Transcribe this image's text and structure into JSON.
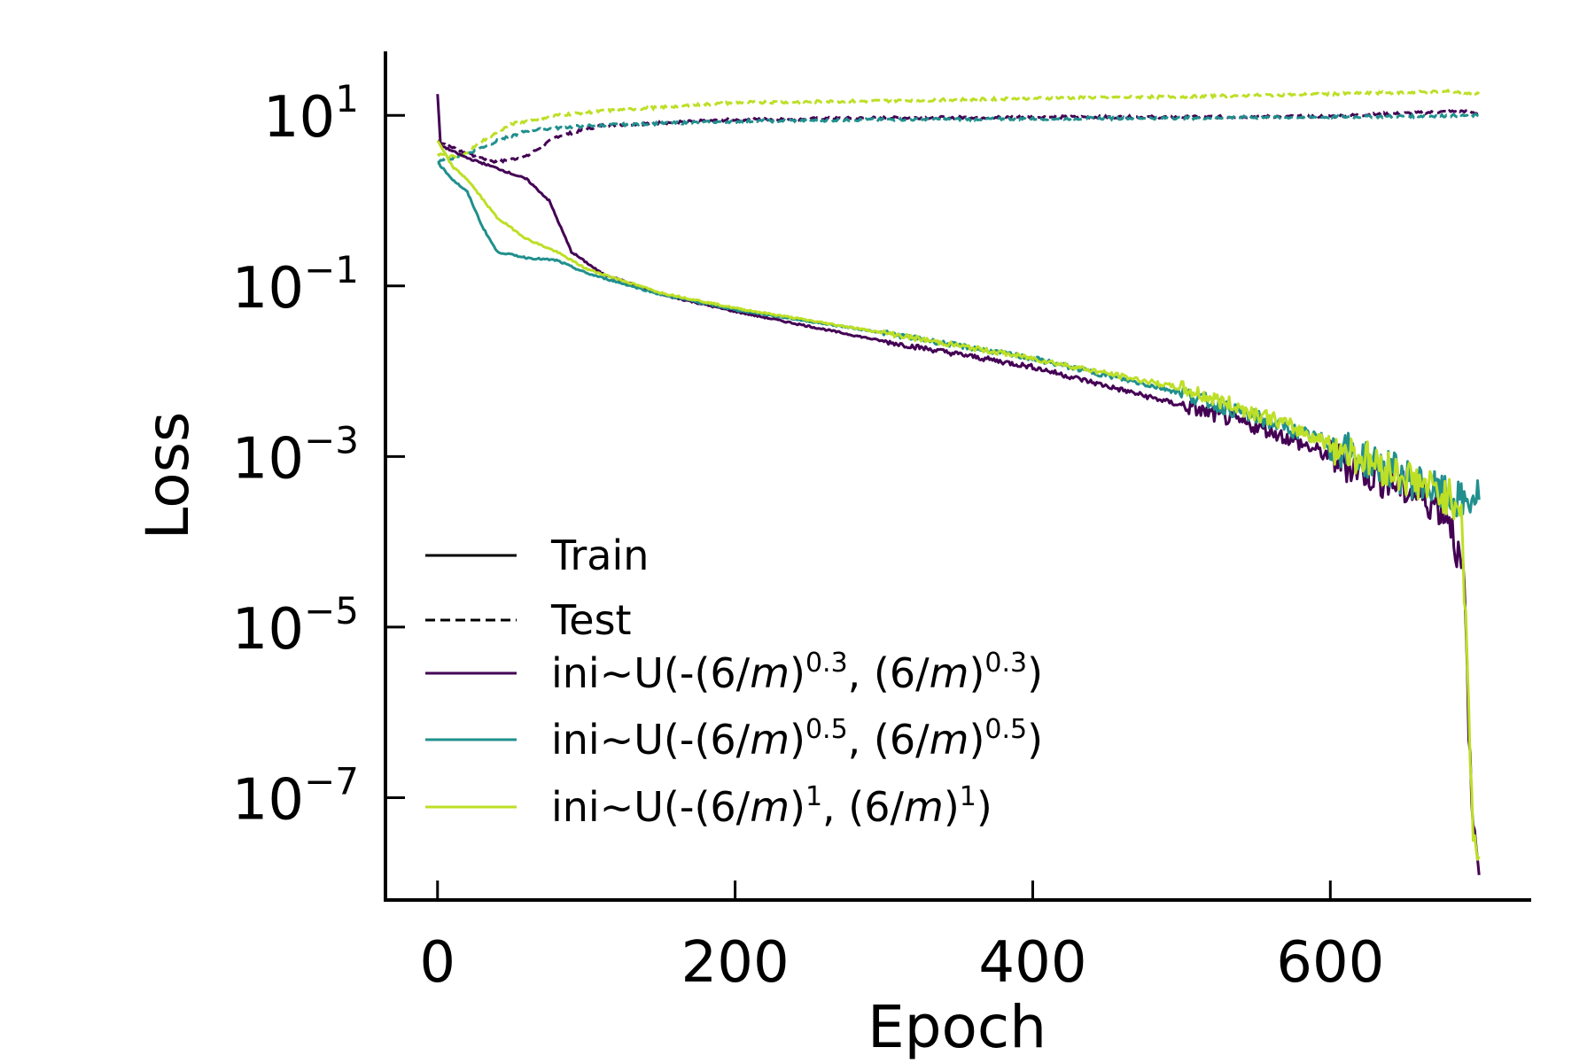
{
  "chart_data": {
    "type": "line",
    "title": "",
    "xlabel": "Epoch",
    "ylabel": "Loss",
    "xlim": [
      -35,
      735
    ],
    "ylim_log10": [
      -8.2,
      1.75
    ],
    "yscale": "log",
    "x_ticks": [
      {
        "value": 0,
        "label": "0"
      },
      {
        "value": 200,
        "label": "200"
      },
      {
        "value": 400,
        "label": "400"
      },
      {
        "value": 600,
        "label": "600"
      }
    ],
    "y_ticks": [
      {
        "log10": 1,
        "base": "10",
        "exp": "1"
      },
      {
        "log10": -1,
        "base": "10",
        "exp": "−1"
      },
      {
        "log10": -3,
        "base": "10",
        "exp": "−3"
      },
      {
        "log10": -5,
        "base": "10",
        "exp": "−5"
      },
      {
        "log10": -7,
        "base": "10",
        "exp": "−7"
      }
    ],
    "legend_position": "lower-left",
    "style_legend": [
      {
        "label": "Train",
        "dash": "solid"
      },
      {
        "label": "Test",
        "dash": "dashed"
      }
    ],
    "series": [
      {
        "name": "ini~U(-(6/m)^0.3, (6/m)^0.3)",
        "color": "#440154",
        "train_log10": [
          [
            0,
            1.25
          ],
          [
            2,
            0.65
          ],
          [
            10,
            0.58
          ],
          [
            20,
            0.5
          ],
          [
            40,
            0.38
          ],
          [
            60,
            0.25
          ],
          [
            75,
            0.0
          ],
          [
            90,
            -0.6
          ],
          [
            110,
            -0.85
          ],
          [
            150,
            -1.1
          ],
          [
            200,
            -1.3
          ],
          [
            300,
            -1.65
          ],
          [
            400,
            -1.95
          ],
          [
            500,
            -2.4
          ],
          [
            560,
            -2.7
          ],
          [
            600,
            -3.0
          ],
          [
            640,
            -3.3
          ],
          [
            670,
            -3.55
          ],
          [
            680,
            -3.7
          ],
          [
            690,
            -4.5
          ],
          [
            695,
            -7.2
          ],
          [
            700,
            -7.75
          ]
        ],
        "test_log10": [
          [
            0,
            0.7
          ],
          [
            20,
            0.55
          ],
          [
            40,
            0.45
          ],
          [
            60,
            0.52
          ],
          [
            80,
            0.75
          ],
          [
            110,
            0.88
          ],
          [
            200,
            0.95
          ],
          [
            300,
            0.97
          ],
          [
            400,
            0.98
          ],
          [
            500,
            0.98
          ],
          [
            600,
            0.99
          ],
          [
            690,
            1.05
          ],
          [
            700,
            1.02
          ]
        ]
      },
      {
        "name": "ini~U(-(6/m)^0.5, (6/m)^0.5)",
        "color": "#21908d",
        "train_log10": [
          [
            0,
            0.45
          ],
          [
            10,
            0.25
          ],
          [
            20,
            0.1
          ],
          [
            30,
            -0.3
          ],
          [
            40,
            -0.6
          ],
          [
            60,
            -0.67
          ],
          [
            80,
            -0.7
          ],
          [
            100,
            -0.85
          ],
          [
            150,
            -1.1
          ],
          [
            200,
            -1.28
          ],
          [
            300,
            -1.55
          ],
          [
            400,
            -1.85
          ],
          [
            500,
            -2.25
          ],
          [
            560,
            -2.6
          ],
          [
            600,
            -2.85
          ],
          [
            640,
            -3.15
          ],
          [
            670,
            -3.4
          ],
          [
            690,
            -3.55
          ],
          [
            700,
            -3.45
          ]
        ],
        "test_log10": [
          [
            0,
            0.45
          ],
          [
            20,
            0.55
          ],
          [
            40,
            0.7
          ],
          [
            60,
            0.82
          ],
          [
            100,
            0.88
          ],
          [
            200,
            0.93
          ],
          [
            300,
            0.95
          ],
          [
            400,
            0.96
          ],
          [
            500,
            0.97
          ],
          [
            600,
            0.98
          ],
          [
            700,
            1.0
          ]
        ]
      },
      {
        "name": "ini~U(-(6/m)^1, (6/m)^1)",
        "color": "#bddf26",
        "train_log10": [
          [
            0,
            0.7
          ],
          [
            10,
            0.4
          ],
          [
            20,
            0.25
          ],
          [
            40,
            -0.2
          ],
          [
            60,
            -0.45
          ],
          [
            80,
            -0.6
          ],
          [
            100,
            -0.8
          ],
          [
            150,
            -1.08
          ],
          [
            200,
            -1.26
          ],
          [
            300,
            -1.55
          ],
          [
            400,
            -1.85
          ],
          [
            500,
            -2.2
          ],
          [
            560,
            -2.55
          ],
          [
            600,
            -2.85
          ],
          [
            640,
            -3.15
          ],
          [
            670,
            -3.4
          ],
          [
            688,
            -3.55
          ],
          [
            692,
            -5.5
          ],
          [
            696,
            -7.4
          ],
          [
            700,
            -7.75
          ]
        ],
        "test_log10": [
          [
            0,
            0.55
          ],
          [
            15,
            0.5
          ],
          [
            30,
            0.7
          ],
          [
            50,
            0.9
          ],
          [
            80,
            1.0
          ],
          [
            110,
            1.05
          ],
          [
            200,
            1.15
          ],
          [
            300,
            1.17
          ],
          [
            400,
            1.2
          ],
          [
            500,
            1.22
          ],
          [
            600,
            1.25
          ],
          [
            680,
            1.28
          ],
          [
            700,
            1.25
          ]
        ]
      }
    ]
  },
  "legend": {
    "train_label": "Train",
    "test_label": "Test",
    "series_labels": [
      {
        "prefix": "ini~U(-(6/",
        "var": "m",
        "mid": ")",
        "exp": "0.3",
        "sep": ", (6/",
        "var2": "m",
        "close": ")",
        "exp2": "0.3",
        "end": ")"
      },
      {
        "prefix": "ini~U(-(6/",
        "var": "m",
        "mid": ")",
        "exp": "0.5",
        "sep": ", (6/",
        "var2": "m",
        "close": ")",
        "exp2": "0.5",
        "end": ")"
      },
      {
        "prefix": "ini~U(-(6/",
        "var": "m",
        "mid": ")",
        "exp": "1",
        "sep": ", (6/",
        "var2": "m",
        "close": ")",
        "exp2": "1",
        "end": ")"
      }
    ]
  }
}
